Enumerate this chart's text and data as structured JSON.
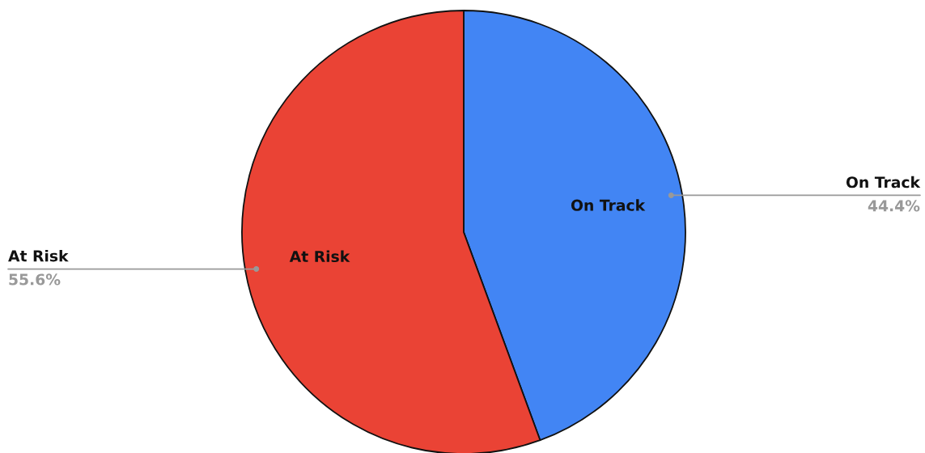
{
  "chart_data": {
    "type": "pie",
    "categories": [
      "On Track",
      "At Risk"
    ],
    "values": [
      44.4,
      55.6
    ],
    "colors": [
      "#4285f4",
      "#ea4335"
    ],
    "value_labels": [
      "44.4%",
      "55.6%"
    ]
  }
}
